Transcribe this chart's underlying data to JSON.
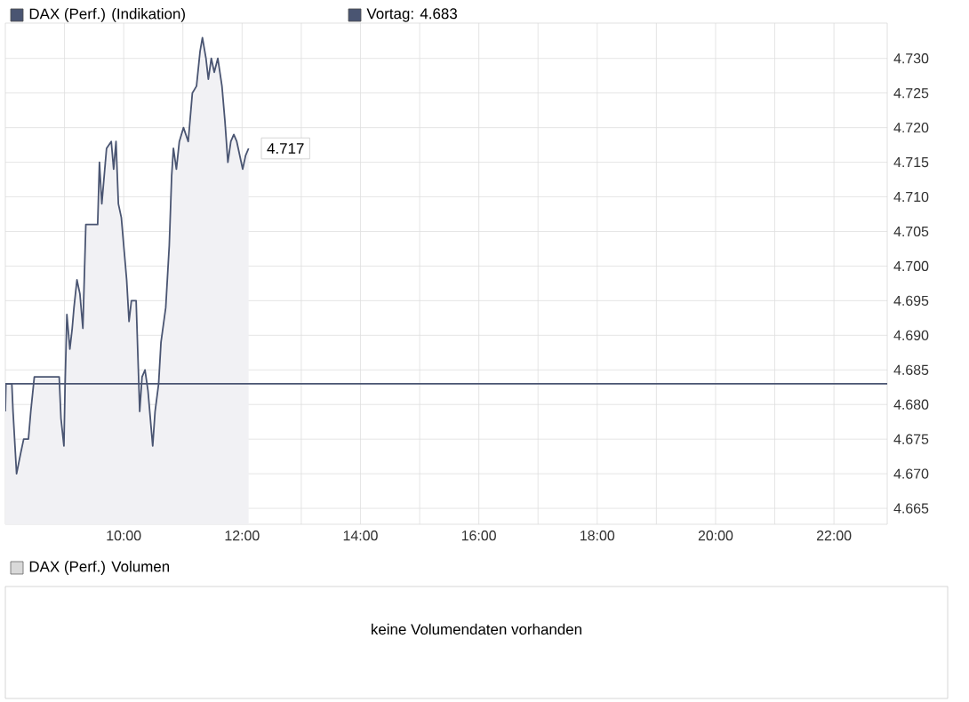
{
  "chart_data": {
    "type": "area",
    "series": [
      {
        "name": "DAX (Perf.) (Indikation)",
        "color": "#4a5572",
        "x": [
          8.0,
          8.01,
          8.11,
          8.13,
          8.19,
          8.26,
          8.31,
          8.39,
          8.43,
          8.49,
          8.91,
          8.94,
          8.99,
          9.01,
          9.04,
          9.09,
          9.13,
          9.16,
          9.21,
          9.26,
          9.31,
          9.36,
          9.56,
          9.59,
          9.63,
          9.71,
          9.79,
          9.83,
          9.87,
          9.91,
          9.96,
          10.01,
          10.05,
          10.09,
          10.13,
          10.21,
          10.24,
          10.27,
          10.31,
          10.36,
          10.41,
          10.46,
          10.49,
          10.53,
          10.59,
          10.63,
          10.71,
          10.77,
          10.81,
          10.84,
          10.89,
          10.94,
          11.01,
          11.09,
          11.16,
          11.23,
          11.29,
          11.33,
          11.39,
          11.43,
          11.48,
          11.53,
          11.59,
          11.66,
          11.71,
          11.76,
          11.81,
          11.86,
          11.91,
          11.96,
          12.01,
          12.06,
          12.11
        ],
        "values": [
          4.679,
          4.683,
          4.683,
          4.679,
          4.67,
          4.673,
          4.675,
          4.675,
          4.679,
          4.684,
          4.684,
          4.678,
          4.674,
          4.683,
          4.693,
          4.688,
          4.691,
          4.694,
          4.698,
          4.696,
          4.691,
          4.706,
          4.706,
          4.715,
          4.709,
          4.717,
          4.718,
          4.714,
          4.718,
          4.709,
          4.707,
          4.702,
          4.698,
          4.692,
          4.695,
          4.695,
          4.687,
          4.679,
          4.684,
          4.685,
          4.682,
          4.677,
          4.674,
          4.679,
          4.683,
          4.689,
          4.694,
          4.703,
          4.713,
          4.717,
          4.714,
          4.718,
          4.72,
          4.718,
          4.725,
          4.726,
          4.731,
          4.733,
          4.73,
          4.727,
          4.73,
          4.728,
          4.73,
          4.726,
          4.721,
          4.715,
          4.718,
          4.719,
          4.718,
          4.716,
          4.714,
          4.716,
          4.717
        ]
      }
    ],
    "xlim": [
      8.0,
      22.9
    ],
    "ylim": [
      4.6627,
      4.7351
    ],
    "xticks": [
      {
        "value": 9,
        "label": null
      },
      {
        "value": 10,
        "label": "10:00"
      },
      {
        "value": 11,
        "label": null
      },
      {
        "value": 12,
        "label": "12:00"
      },
      {
        "value": 13,
        "label": null
      },
      {
        "value": 14,
        "label": "14:00"
      },
      {
        "value": 15,
        "label": null
      },
      {
        "value": 16,
        "label": "16:00"
      },
      {
        "value": 17,
        "label": null
      },
      {
        "value": 18,
        "label": "18:00"
      },
      {
        "value": 19,
        "label": null
      },
      {
        "value": 20,
        "label": "20:00"
      },
      {
        "value": 21,
        "label": null
      },
      {
        "value": 22,
        "label": "22:00"
      }
    ],
    "yticks": [
      {
        "value": 4.665,
        "label": "4.665"
      },
      {
        "value": 4.67,
        "label": "4.670"
      },
      {
        "value": 4.675,
        "label": "4.675"
      },
      {
        "value": 4.68,
        "label": "4.680"
      },
      {
        "value": 4.685,
        "label": "4.685"
      },
      {
        "value": 4.69,
        "label": "4.690"
      },
      {
        "value": 4.695,
        "label": "4.695"
      },
      {
        "value": 4.7,
        "label": "4.700"
      },
      {
        "value": 4.705,
        "label": "4.705"
      },
      {
        "value": 4.71,
        "label": "4.710"
      },
      {
        "value": 4.715,
        "label": "4.715"
      },
      {
        "value": 4.72,
        "label": "4.720"
      },
      {
        "value": 4.725,
        "label": "4.725"
      },
      {
        "value": 4.73,
        "label": "4.730"
      }
    ],
    "ref_lines": [
      {
        "axis": "y",
        "value": 4.683,
        "label": "Vortag: 4.683",
        "color": "#4a5572"
      }
    ],
    "annotations": [
      {
        "text": "4.717",
        "x": 12.11,
        "y": 4.717
      },
      "DAX (Perf.) Volumen",
      "keine Volumendaten vorhanden"
    ],
    "grid": true,
    "legend": "top left"
  }
}
